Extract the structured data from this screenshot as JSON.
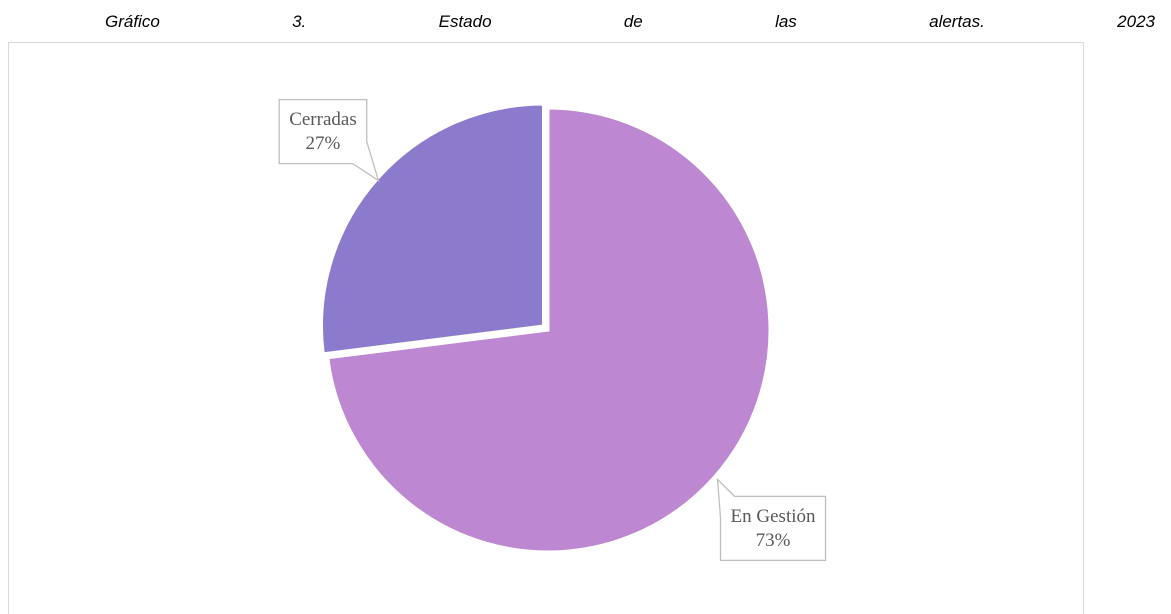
{
  "chart_data": {
    "type": "pie",
    "title": "Gráfico 3. Estado de las alertas. 2023",
    "categories": [
      "En Gestión",
      "Cerradas"
    ],
    "values": [
      73,
      27
    ],
    "value_labels": [
      "73%",
      "27%"
    ],
    "colors": [
      "#bd87d1",
      "#8c7bcd"
    ]
  }
}
